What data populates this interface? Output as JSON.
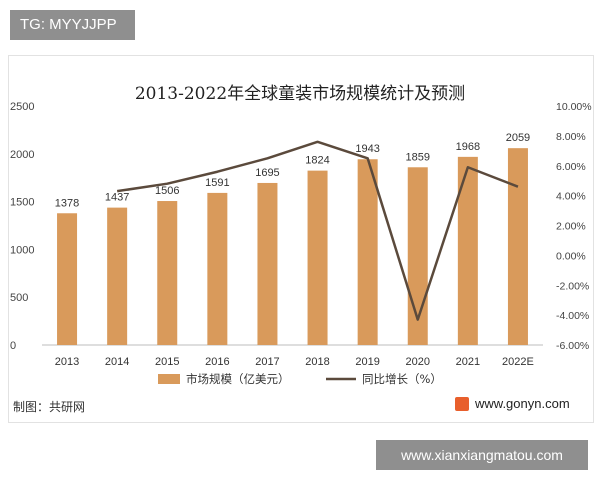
{
  "badge": {
    "text": "TG: MYYJJPP"
  },
  "chart_data": {
    "type": "bar",
    "title": "2013-2022年全球童装市场规模统计及预测",
    "categories": [
      "2013",
      "2014",
      "2015",
      "2016",
      "2017",
      "2018",
      "2019",
      "2020",
      "2021",
      "2022E"
    ],
    "series": [
      {
        "name": "市场规模（亿美元）",
        "type": "bar",
        "axis": "left",
        "color": "#d99a5b",
        "values": [
          1378,
          1437,
          1506,
          1591,
          1695,
          1824,
          1943,
          1859,
          1968,
          2059
        ]
      },
      {
        "name": "同比增长（%）",
        "type": "line",
        "axis": "right",
        "color": "#5b4a3c",
        "values": [
          null,
          4.3,
          4.8,
          5.6,
          6.5,
          7.6,
          6.5,
          -4.3,
          5.9,
          4.6
        ]
      }
    ],
    "left_axis": {
      "ylim": [
        0,
        2500
      ],
      "ticks": [
        "0",
        "500",
        "1000",
        "1500",
        "2000",
        "2500"
      ]
    },
    "right_axis": {
      "ylim": [
        -6,
        10
      ],
      "ticks": [
        "-6.00%",
        "-4.00%",
        "-2.00%",
        "0.00%",
        "2.00%",
        "4.00%",
        "6.00%",
        "8.00%",
        "10.00%"
      ]
    },
    "legend_position": "bottom",
    "grid": false
  },
  "footer": {
    "source": "制图：共研网",
    "site": "www.gonyn.com"
  },
  "watermark": {
    "text": "www.xianxiangmatou.com"
  }
}
